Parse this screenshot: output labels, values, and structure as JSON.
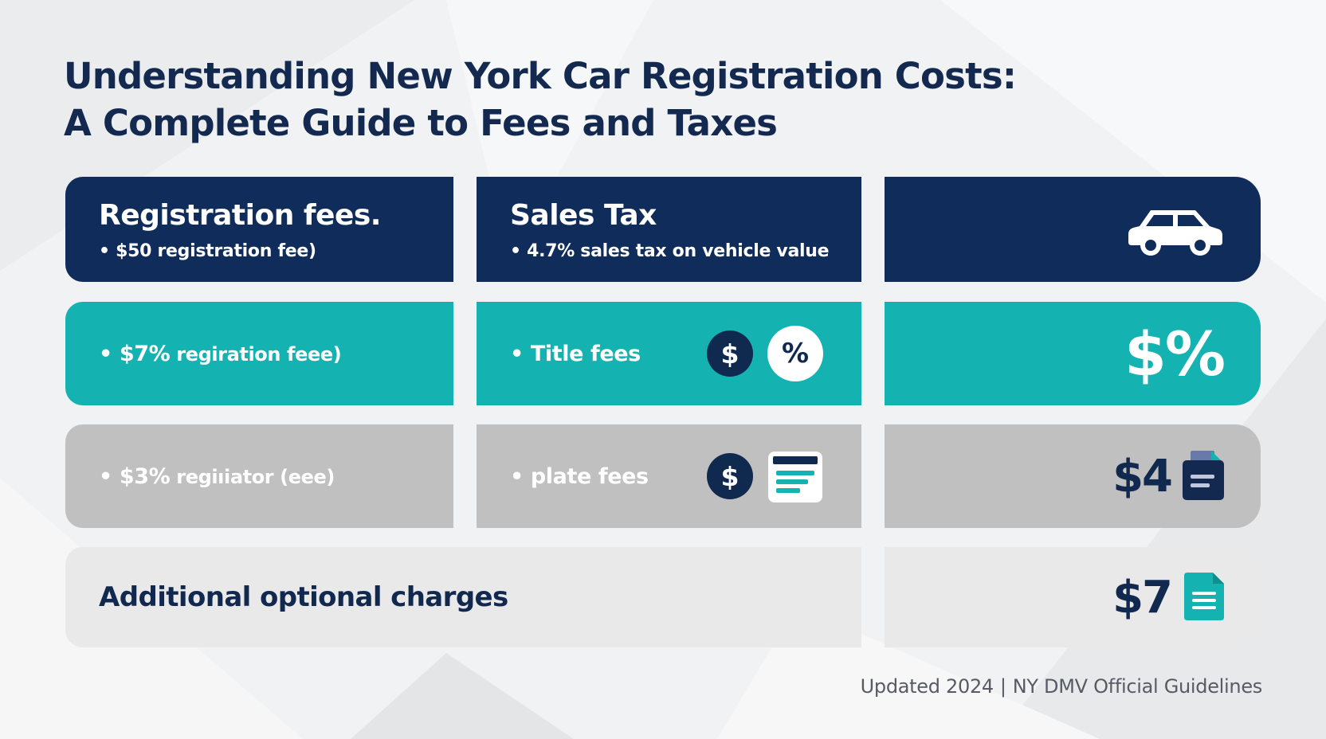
{
  "title": {
    "line1": "Understanding New York Car Registration Costs:",
    "line2": "A Complete Guide to Fees and Taxes"
  },
  "rows": {
    "r1": {
      "c1": {
        "heading": "Registration fees.",
        "bullet": "• $50 registration fee)"
      },
      "c2": {
        "heading": "Sales Tax",
        "bullet": "• 4.7% sales tax on vehicle value"
      },
      "c3": {
        "icon": "car-icon"
      }
    },
    "r2": {
      "c1": {
        "bullet_amount": "• $7%",
        "bullet_rest": " regiration feee)"
      },
      "c2": {
        "bullet": "• Title fees",
        "icon_dollar": "$",
        "icon_percent": "%"
      },
      "c3": {
        "symbol": "$%"
      }
    },
    "r3": {
      "c1": {
        "bullet_amount": "• $3%",
        "bullet_rest": " regiıiator (eee)"
      },
      "c2": {
        "bullet": "• plate fees",
        "icon_dollar": "$",
        "doc_icon": "document-icon"
      },
      "c3": {
        "amount": "$4",
        "icon": "folder-document-icon"
      }
    },
    "r4": {
      "label": "Additional optional charges",
      "amount": "$7",
      "icon": "document-icon"
    }
  },
  "footer": {
    "updated": "Updated 2024",
    "separator": "|",
    "source": "NY DMV Official Guidelines"
  },
  "colors": {
    "navy": "#0f2c5a",
    "teal": "#14b3b2",
    "gray": "#c0c0c0",
    "light": "#e9e9ea"
  }
}
